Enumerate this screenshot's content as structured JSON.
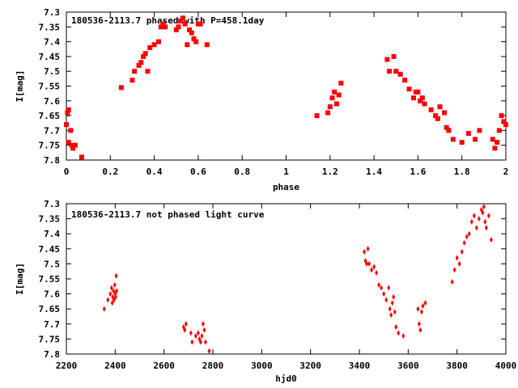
{
  "colors": {
    "points": "#ff0000",
    "axes": "#000000",
    "background": "#ffffff"
  },
  "chart_data": [
    {
      "type": "scatter",
      "title": "180536-2113.7 phased with P=458.1day",
      "xlabel": "phase",
      "ylabel": "I[mag]",
      "xlim": [
        0,
        2
      ],
      "ylim": [
        7.8,
        7.3
      ],
      "y_inverted": true,
      "grid": false,
      "marker": "square",
      "xticks": [
        "0",
        "0.2",
        "0.4",
        "0.6",
        "0.8",
        "1",
        "1.2",
        "1.4",
        "1.6",
        "1.8",
        "2"
      ],
      "yticks": [
        "7.3",
        "7.35",
        "7.4",
        "7.45",
        "7.5",
        "7.55",
        "7.6",
        "7.65",
        "7.7",
        "7.75",
        "7.8"
      ],
      "series": [
        {
          "x": [
            0.0,
            0.005,
            0.01,
            0.01,
            0.02,
            0.025,
            0.03,
            0.04,
            0.07,
            0.25,
            0.3,
            0.31,
            0.33,
            0.34,
            0.35,
            0.36,
            0.37,
            0.38,
            0.4,
            0.42,
            0.43,
            0.44,
            0.45,
            0.5,
            0.51,
            0.52,
            0.53,
            0.54,
            0.55,
            0.56,
            0.57,
            0.58,
            0.59,
            0.6,
            0.61,
            0.64,
            1.14,
            1.19,
            1.2,
            1.21,
            1.22,
            1.23,
            1.24,
            1.25,
            1.46,
            1.47,
            1.49,
            1.5,
            1.52,
            1.54,
            1.56,
            1.58,
            1.59,
            1.6,
            1.61,
            1.62,
            1.63,
            1.66,
            1.68,
            1.69,
            1.7,
            1.72,
            1.73,
            1.74,
            1.76,
            1.8,
            1.83,
            1.86,
            1.88,
            1.94,
            1.95,
            1.96,
            1.97,
            1.98,
            1.99,
            2.0
          ],
          "y": [
            7.68,
            7.64,
            7.63,
            7.74,
            7.7,
            7.75,
            7.76,
            7.75,
            7.79,
            7.555,
            7.53,
            7.5,
            7.48,
            7.47,
            7.45,
            7.44,
            7.5,
            7.42,
            7.41,
            7.4,
            7.35,
            7.34,
            7.35,
            7.36,
            7.35,
            7.33,
            7.32,
            7.34,
            7.41,
            7.36,
            7.37,
            7.39,
            7.4,
            7.34,
            7.34,
            7.41,
            7.65,
            7.64,
            7.62,
            7.59,
            7.57,
            7.61,
            7.58,
            7.54,
            7.46,
            7.5,
            7.45,
            7.5,
            7.51,
            7.53,
            7.56,
            7.59,
            7.57,
            7.57,
            7.6,
            7.59,
            7.61,
            7.63,
            7.65,
            7.66,
            7.62,
            7.64,
            7.69,
            7.7,
            7.73,
            7.74,
            7.71,
            7.73,
            7.7,
            7.73,
            7.76,
            7.74,
            7.7,
            7.65,
            7.67,
            7.68
          ]
        }
      ]
    },
    {
      "type": "scatter",
      "title": "180536-2113.7 not phased light curve",
      "xlabel": "hjd0",
      "ylabel": "I[mag]",
      "xlim": [
        2200,
        4000
      ],
      "ylim": [
        7.8,
        7.3
      ],
      "y_inverted": true,
      "grid": false,
      "marker": "diamond",
      "xticks": [
        "2200",
        "2400",
        "2600",
        "2800",
        "3000",
        "3200",
        "3400",
        "3600",
        "3800",
        "4000"
      ],
      "yticks": [
        "7.3",
        "7.35",
        "7.4",
        "7.45",
        "7.5",
        "7.55",
        "7.6",
        "7.65",
        "7.7",
        "7.75",
        "7.8"
      ],
      "series": [
        {
          "x": [
            2355,
            2370,
            2380,
            2385,
            2388,
            2390,
            2393,
            2395,
            2398,
            2400,
            2402,
            2404,
            2406,
            2680,
            2685,
            2690,
            2710,
            2715,
            2730,
            2740,
            2745,
            2750,
            2755,
            2760,
            2765,
            2770,
            2785,
            3420,
            3425,
            3430,
            3435,
            3440,
            3450,
            3460,
            3470,
            3480,
            3490,
            3500,
            3510,
            3520,
            3525,
            3530,
            3535,
            3540,
            3545,
            3550,
            3560,
            3580,
            3640,
            3645,
            3650,
            3655,
            3660,
            3670,
            3780,
            3790,
            3800,
            3810,
            3820,
            3830,
            3840,
            3850,
            3860,
            3870,
            3880,
            3890,
            3900,
            3905,
            3910,
            3915,
            3920,
            3930,
            3940
          ],
          "y": [
            7.65,
            7.62,
            7.6,
            7.58,
            7.63,
            7.61,
            7.59,
            7.62,
            7.57,
            7.6,
            7.61,
            7.54,
            7.59,
            7.71,
            7.72,
            7.7,
            7.73,
            7.76,
            7.74,
            7.73,
            7.75,
            7.76,
            7.74,
            7.7,
            7.72,
            7.76,
            7.79,
            7.46,
            7.49,
            7.5,
            7.45,
            7.5,
            7.52,
            7.51,
            7.53,
            7.57,
            7.58,
            7.6,
            7.62,
            7.58,
            7.65,
            7.67,
            7.63,
            7.61,
            7.66,
            7.71,
            7.73,
            7.74,
            7.65,
            7.7,
            7.72,
            7.66,
            7.64,
            7.63,
            7.56,
            7.52,
            7.48,
            7.5,
            7.46,
            7.43,
            7.41,
            7.4,
            7.36,
            7.34,
            7.38,
            7.35,
            7.32,
            7.33,
            7.31,
            7.36,
            7.38,
            7.34,
            7.42
          ]
        }
      ]
    }
  ]
}
